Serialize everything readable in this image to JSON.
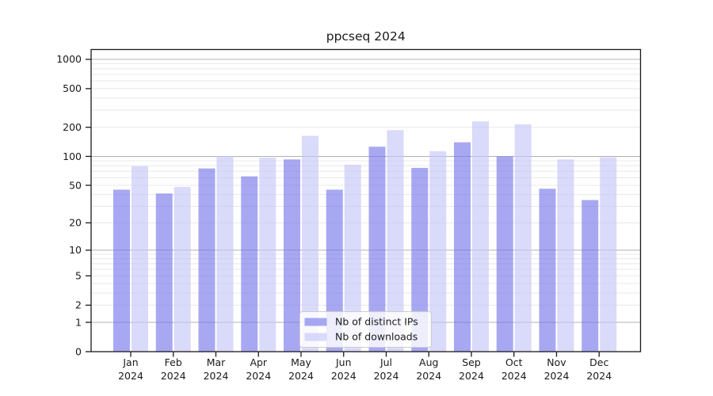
{
  "title": "ppcseq 2024",
  "legend": {
    "items": [
      {
        "label": "Nb of distinct IPs",
        "color": "#7979eb",
        "alpha": 0.65
      },
      {
        "label": "Nb of downloads",
        "color": "#c6c6f7",
        "alpha": 0.65
      }
    ],
    "frame_color": "#cccccc",
    "frame_fill": "#ffffff",
    "frame_alpha": 0.8
  },
  "axes": {
    "yticks": [
      1000,
      500,
      200,
      100,
      50,
      20,
      10,
      5,
      2,
      1,
      0
    ],
    "major_grid_values": [
      1,
      10,
      100,
      1000
    ],
    "major_grid_color": "#b0b0b0",
    "minor_grid_color": "#e8e8e8",
    "spine_color": "#1a1a1a"
  },
  "chart_data": {
    "type": "bar",
    "title": "ppcseq 2024",
    "xlabel": "",
    "ylabel": "",
    "yscale": "log1p",
    "ylim": [
      0,
      1260
    ],
    "grid": "on",
    "legend_position": "lower center",
    "categories": [
      "Jan 2024",
      "Feb 2024",
      "Mar 2024",
      "Apr 2024",
      "May 2024",
      "Jun 2024",
      "Jul 2024",
      "Aug 2024",
      "Sep 2024",
      "Oct 2024",
      "Nov 2024",
      "Dec 2024"
    ],
    "series": [
      {
        "name": "Nb of distinct IPs",
        "values": [
          45,
          41,
          75,
          62,
          93,
          45,
          126,
          76,
          140,
          100,
          46,
          35
        ]
      },
      {
        "name": "Nb of downloads",
        "values": [
          79,
          48,
          101,
          97,
          163,
          82,
          187,
          113,
          230,
          215,
          93,
          98
        ]
      }
    ]
  }
}
